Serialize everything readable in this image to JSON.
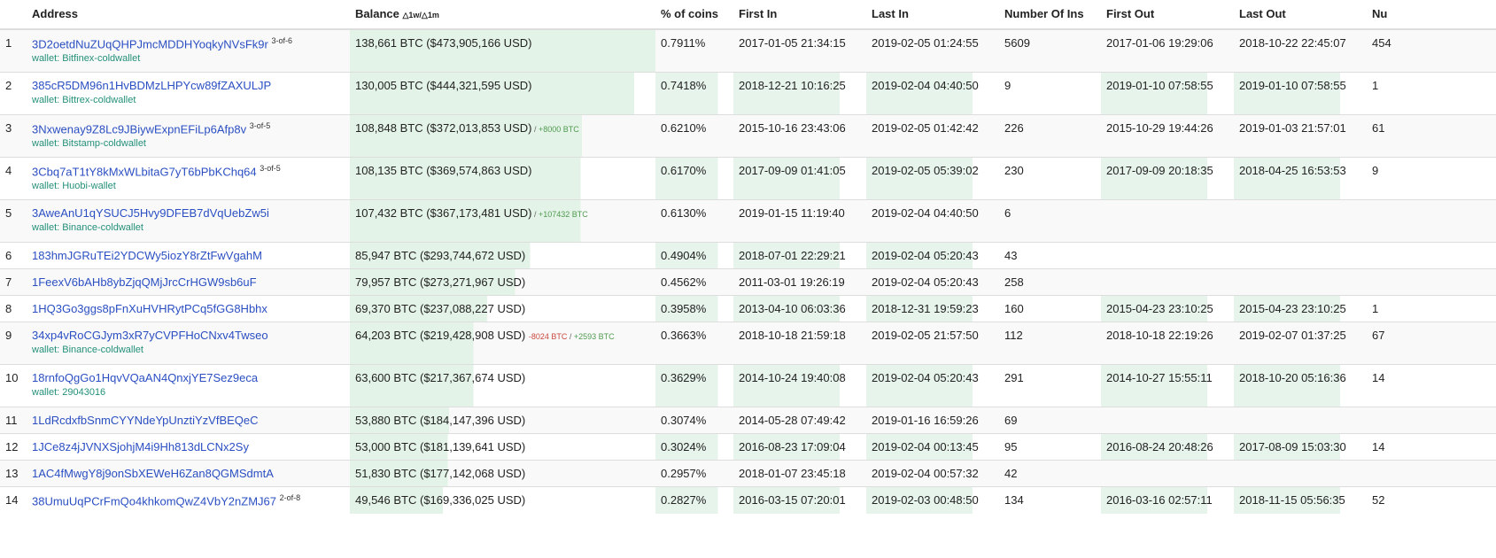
{
  "headers": {
    "rank": "",
    "address": "Address",
    "balance": "Balance",
    "balance_sub": "△1w/△1m",
    "pct": "% of coins",
    "first_in": "First In",
    "last_in": "Last In",
    "num_ins": "Number Of Ins",
    "first_out": "First Out",
    "last_out": "Last Out",
    "num_outs": "Nu"
  },
  "colors": {
    "link": "#2b4fc2",
    "wallet": "#23907a",
    "bar": "#e4f3e8",
    "positive": "#4f9a4f",
    "negative": "#c9483f"
  },
  "rows": [
    {
      "rank": "1",
      "address": "3D2oetdNuZUqQHPJmcMDDHYoqkyNVsFk9r",
      "sig": "3-of-6",
      "wallet": "wallet: Bitfinex-coldwallet",
      "balance": "138,661 BTC ($473,905,166 USD)",
      "bar": 1.0,
      "pct": "0.7911%",
      "first_in": "2017-01-05 21:34:15",
      "last_in": "2019-02-05 01:24:55",
      "num_ins": "5609",
      "first_out": "2017-01-06 19:29:06",
      "last_out": "2018-10-22 22:45:07",
      "num_outs": "454"
    },
    {
      "rank": "2",
      "address": "385cR5DM96n1HvBDMzLHPYcw89fZAXULJP",
      "wallet": "wallet: Bittrex-coldwallet",
      "balance": "130,005 BTC ($444,321,595 USD)",
      "bar": 0.93,
      "pct": "0.7418%",
      "first_in": "2018-12-21 10:16:25",
      "last_in": "2019-02-04 04:40:50",
      "num_ins": "9",
      "first_out": "2019-01-10 07:58:55",
      "last_out": "2019-01-10 07:58:55",
      "num_outs": "1"
    },
    {
      "rank": "3",
      "address": "3Nxwenay9Z8Lc9JBiywExpnEFiLp6Afp8v",
      "sig": "3-of-5",
      "wallet": "wallet: Bitstamp-coldwallet",
      "balance": "108,848 BTC ($372,013,853 USD)",
      "delta_pos": "+8000 BTC",
      "bar": 0.76,
      "pct": "0.6210%",
      "first_in": "2015-10-16 23:43:06",
      "last_in": "2019-02-05 01:42:42",
      "num_ins": "226",
      "first_out": "2015-10-29 19:44:26",
      "last_out": "2019-01-03 21:57:01",
      "num_outs": "61"
    },
    {
      "rank": "4",
      "address": "3Cbq7aT1tY8kMxWLbitaG7yT6bPbKChq64",
      "sig": "3-of-5",
      "wallet": "wallet: Huobi-wallet",
      "balance": "108,135 BTC ($369,574,863 USD)",
      "bar": 0.755,
      "pct": "0.6170%",
      "first_in": "2017-09-09 01:41:05",
      "last_in": "2019-02-05 05:39:02",
      "num_ins": "230",
      "first_out": "2017-09-09 20:18:35",
      "last_out": "2018-04-25 16:53:53",
      "num_outs": "9"
    },
    {
      "rank": "5",
      "address": "3AweAnU1qYSUCJ5Hvy9DFEB7dVqUebZw5i",
      "wallet": "wallet: Binance-coldwallet",
      "balance": "107,432 BTC ($367,173,481 USD)",
      "delta_pos": "+107432 BTC",
      "bar": 0.755,
      "pct": "0.6130%",
      "first_in": "2019-01-15 11:19:40",
      "last_in": "2019-02-04 04:40:50",
      "num_ins": "6",
      "first_out": "",
      "last_out": "",
      "num_outs": ""
    },
    {
      "rank": "6",
      "address": "183hmJGRuTEi2YDCWy5iozY8rZtFwVgahM",
      "balance": "85,947 BTC ($293,744,672 USD)",
      "bar": 0.59,
      "pct": "0.4904%",
      "first_in": "2018-07-01 22:29:21",
      "last_in": "2019-02-04 05:20:43",
      "num_ins": "43",
      "first_out": "",
      "last_out": "",
      "num_outs": ""
    },
    {
      "rank": "7",
      "address": "1FeexV6bAHb8ybZjqQMjJrcCrHGW9sb6uF",
      "balance": "79,957 BTC ($273,271,967 USD)",
      "bar": 0.54,
      "pct": "0.4562%",
      "first_in": "2011-03-01 19:26:19",
      "last_in": "2019-02-04 05:20:43",
      "num_ins": "258",
      "first_out": "",
      "last_out": "",
      "num_outs": ""
    },
    {
      "rank": "8",
      "address": "1HQ3Go3ggs8pFnXuHVHRytPCq5fGG8Hbhx",
      "balance": "69,370 BTC ($237,088,227 USD)",
      "bar": 0.45,
      "pct": "0.3958%",
      "first_in": "2013-04-10 06:03:36",
      "last_in": "2018-12-31 19:59:23",
      "num_ins": "160",
      "first_out": "2015-04-23 23:10:25",
      "last_out": "2015-04-23 23:10:25",
      "num_outs": "1"
    },
    {
      "rank": "9",
      "address": "34xp4vRoCGJym3xR7yCVPFHoCNxv4Twseo",
      "wallet": "wallet: Binance-coldwallet",
      "balance": "64,203 BTC ($219,428,908 USD)",
      "delta_neg": "-8024 BTC",
      "delta_pos": "+2593 BTC",
      "bar": 0.405,
      "pct": "0.3663%",
      "first_in": "2018-10-18 21:59:18",
      "last_in": "2019-02-05 21:57:50",
      "num_ins": "112",
      "first_out": "2018-10-18 22:19:26",
      "last_out": "2019-02-07 01:37:25",
      "num_outs": "67"
    },
    {
      "rank": "10",
      "address": "18rnfoQgGo1HqvVQaAN4QnxjYE7Sez9eca",
      "wallet": "wallet: 29043016",
      "balance": "63,600 BTC ($217,367,674 USD)",
      "bar": 0.405,
      "pct": "0.3629%",
      "first_in": "2014-10-24 19:40:08",
      "last_in": "2019-02-04 05:20:43",
      "num_ins": "291",
      "first_out": "2014-10-27 15:55:11",
      "last_out": "2018-10-20 05:16:36",
      "num_outs": "14"
    },
    {
      "rank": "11",
      "address": "1LdRcdxfbSnmCYYNdeYpUnztiYzVfBEQeC",
      "balance": "53,880 BTC ($184,147,396 USD)",
      "bar": 0.325,
      "pct": "0.3074%",
      "first_in": "2014-05-28 07:49:42",
      "last_in": "2019-01-16 16:59:26",
      "num_ins": "69",
      "first_out": "",
      "last_out": "",
      "num_outs": ""
    },
    {
      "rank": "12",
      "address": "1JCe8z4jJVNXSjohjM4i9Hh813dLCNx2Sy",
      "balance": "53,000 BTC ($181,139,641 USD)",
      "bar": 0.32,
      "pct": "0.3024%",
      "first_in": "2016-08-23 17:09:04",
      "last_in": "2019-02-04 00:13:45",
      "num_ins": "95",
      "first_out": "2016-08-24 20:48:26",
      "last_out": "2017-08-09 15:03:30",
      "num_outs": "14"
    },
    {
      "rank": "13",
      "address": "1AC4fMwgY8j9onSbXEWeH6Zan8QGMSdmtA",
      "balance": "51,830 BTC ($177,142,068 USD)",
      "bar": 0.32,
      "pct": "0.2957%",
      "first_in": "2018-01-07 23:45:18",
      "last_in": "2019-02-04 00:57:32",
      "num_ins": "42",
      "first_out": "",
      "last_out": "",
      "num_outs": ""
    },
    {
      "rank": "14",
      "address": "38UmuUqPCrFmQo4khkomQwZ4VbY2nZMJ67",
      "sig": "2-of-8",
      "balance": "49,546 BTC ($169,336,025 USD)",
      "bar": 0.305,
      "pct": "0.2827%",
      "first_in": "2016-03-15 07:20:01",
      "last_in": "2019-02-03 00:48:50",
      "num_ins": "134",
      "first_out": "2016-03-16 02:57:11",
      "last_out": "2018-11-15 05:56:35",
      "num_outs": "52"
    }
  ]
}
